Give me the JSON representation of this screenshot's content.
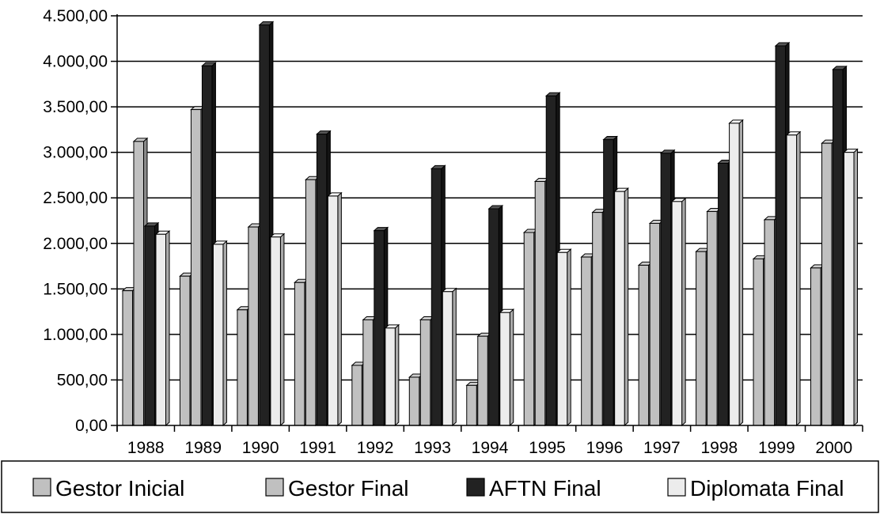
{
  "chart_data": {
    "type": "bar",
    "title": "",
    "xlabel": "",
    "ylabel": "",
    "ylim": [
      0,
      4500
    ],
    "y_ticks": [
      0,
      500,
      1000,
      1500,
      2000,
      2500,
      3000,
      3500,
      4000,
      4500
    ],
    "y_tick_labels": [
      "0,00",
      "500,00",
      "1.000,00",
      "1.500,00",
      "2.000,00",
      "2.500,00",
      "3.000,00",
      "3.500,00",
      "4.000,00",
      "4.500,00"
    ],
    "grid": true,
    "legend_position": "bottom",
    "categories": [
      "1988",
      "1989",
      "1990",
      "1991",
      "1992",
      "1993",
      "1994",
      "1995",
      "1996",
      "1997",
      "1998",
      "1999",
      "2000"
    ],
    "series": [
      {
        "name": "Gestor Inicial",
        "color": "#c0c0c0",
        "values": [
          1480,
          1640,
          1270,
          1570,
          660,
          530,
          440,
          2120,
          1850,
          1760,
          1910,
          1830,
          1730
        ]
      },
      {
        "name": "Gestor Final",
        "color": "#c0c0c0",
        "values": [
          3120,
          3470,
          2180,
          2700,
          1160,
          1160,
          980,
          2680,
          2340,
          2220,
          2350,
          2260,
          3100
        ]
      },
      {
        "name": "AFTN Final",
        "color": "#222222",
        "values": [
          2190,
          3950,
          4400,
          3200,
          2140,
          2820,
          2380,
          3620,
          3140,
          2990,
          2880,
          4170,
          3910
        ]
      },
      {
        "name": "Diplomata Final",
        "color": "#ececec",
        "values": [
          2100,
          1990,
          2070,
          2520,
          1070,
          1470,
          1240,
          1900,
          2570,
          2460,
          3320,
          3190,
          3000
        ]
      }
    ]
  }
}
